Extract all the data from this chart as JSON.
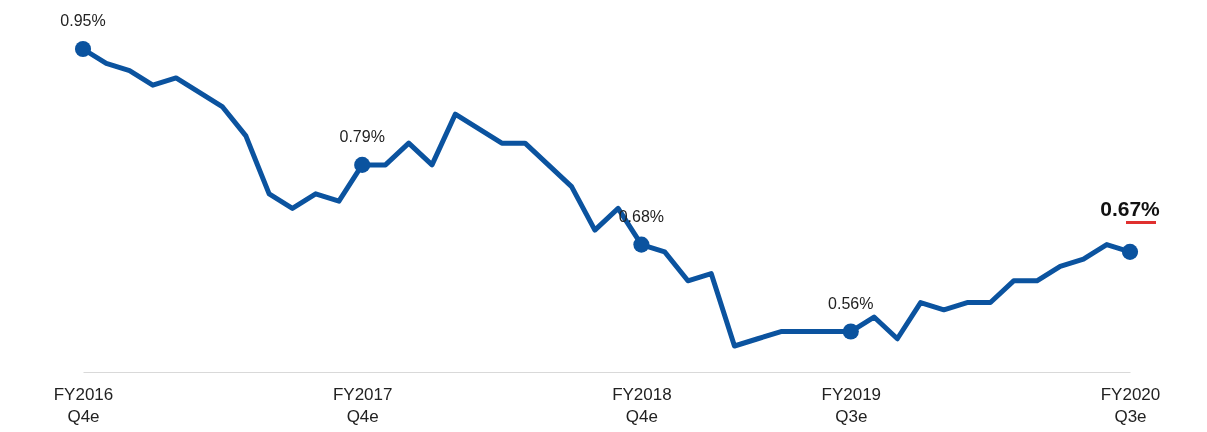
{
  "chart_data": {
    "type": "line",
    "categories": [
      "FY2016 Q4e",
      null,
      null,
      null,
      null,
      null,
      null,
      null,
      null,
      null,
      null,
      null,
      "FY2017 Q4e",
      null,
      null,
      null,
      null,
      null,
      null,
      null,
      null,
      null,
      null,
      null,
      "FY2018 Q4e",
      null,
      null,
      null,
      null,
      null,
      null,
      null,
      null,
      "FY2019 Q3e",
      null,
      null,
      null,
      null,
      null,
      null,
      null,
      null,
      null,
      null,
      null,
      "FY2020 Q3e"
    ],
    "series": [
      {
        "color": "#0b539f",
        "values": [
          0.95,
          0.93,
          0.92,
          0.9,
          0.91,
          0.89,
          0.87,
          0.83,
          0.75,
          0.73,
          0.75,
          0.74,
          0.79,
          0.79,
          0.82,
          0.79,
          0.86,
          0.84,
          0.82,
          0.82,
          0.79,
          0.76,
          0.7,
          0.73,
          0.68,
          0.67,
          0.63,
          0.64,
          0.54,
          0.55,
          0.56,
          0.56,
          0.56,
          0.56,
          0.58,
          0.55,
          0.6,
          0.59,
          0.6,
          0.6,
          0.63,
          0.63,
          0.65,
          0.66,
          0.68,
          0.67
        ],
        "value_labels": [
          "0.95%",
          null,
          null,
          null,
          null,
          null,
          null,
          null,
          null,
          null,
          null,
          null,
          "0.79%",
          null,
          null,
          null,
          null,
          null,
          null,
          null,
          null,
          null,
          null,
          null,
          "0.68%",
          null,
          null,
          null,
          null,
          null,
          null,
          null,
          null,
          "0.56%",
          null,
          null,
          null,
          null,
          null,
          null,
          null,
          null,
          null,
          null,
          null,
          "0.67%"
        ]
      }
    ],
    "grid": false,
    "line_style": "solid"
  }
}
